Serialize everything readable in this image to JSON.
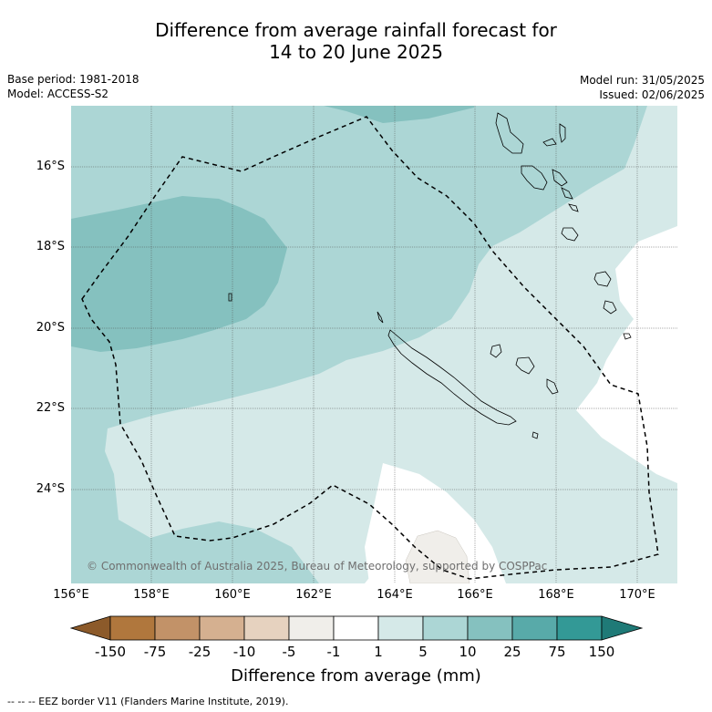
{
  "header": {
    "title_line1": "Difference from average rainfall forecast for",
    "title_line2": "14 to 20 June 2025",
    "base_period": "Base period: 1981-2018",
    "model": "Model: ACCESS-S2",
    "model_run": "Model run: 31/05/2025",
    "issued": "Issued: 02/06/2025"
  },
  "map": {
    "lat_labels": [
      "16°S",
      "18°S",
      "20°S",
      "22°S",
      "24°S"
    ],
    "lon_labels": [
      "156°E",
      "158°E",
      "160°E",
      "162°E",
      "164°E",
      "166°E",
      "168°E",
      "170°E"
    ],
    "copyright": "© Commonwealth of Australia 2025, Bureau of Meteorology, supported by COSPPac",
    "colors": {
      "background": "#d5e9e8",
      "band_5_10": "#acd6d5",
      "band_10_25": "#85c1bf",
      "band_m1_1": "#ffffff",
      "band_m5_m1": "#f0eeea"
    }
  },
  "colorbar": {
    "tick_labels": [
      "-150",
      "-75",
      "-25",
      "-10",
      "-5",
      "-1",
      "1",
      "5",
      "10",
      "25",
      "75",
      "150"
    ],
    "colors": [
      "#8c5a2a",
      "#b0773d",
      "#c29268",
      "#d5b090",
      "#e6d2bf",
      "#f0eeea",
      "#ffffff",
      "#d5e9e8",
      "#acd6d5",
      "#85c1bf",
      "#58aaa9",
      "#339996",
      "#1f7a77"
    ],
    "title": "Difference from average (mm)"
  },
  "footnote": "--  --  -- EEZ border V11 (Flanders Marine Institute, 2019)."
}
